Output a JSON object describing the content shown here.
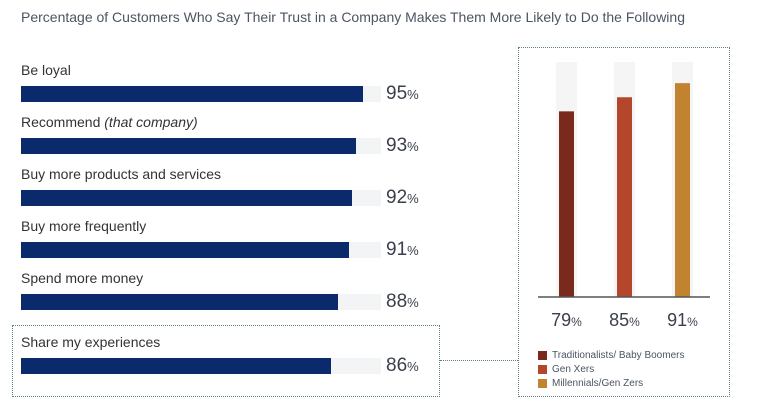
{
  "chart_data": [
    {
      "type": "bar",
      "orientation": "horizontal",
      "title": "Percentage of Customers Who Say Their Trust in a Company Makes Them More Likely to Do the Following",
      "categories": [
        {
          "label": "Be loyal",
          "label_note": ""
        },
        {
          "label": "Recommend ",
          "label_note": "(that company)"
        },
        {
          "label": "Buy more products and services",
          "label_note": ""
        },
        {
          "label": "Buy more frequently",
          "label_note": ""
        },
        {
          "label": "Spend more money",
          "label_note": ""
        },
        {
          "label": "Share my experiences",
          "label_note": ""
        }
      ],
      "values": [
        95,
        93,
        92,
        91,
        88,
        86
      ],
      "value_suffix": "%",
      "xlim": [
        0,
        100
      ],
      "highlighted_category": "Share my experiences",
      "bar_color": "#0b2a6b"
    },
    {
      "type": "bar",
      "orientation": "vertical",
      "subject": "Share my experiences",
      "categories": [
        "Traditionalists/Baby Boomers",
        "Gen Xers",
        "Millennials/Gen Zers"
      ],
      "values": [
        79,
        85,
        91
      ],
      "value_suffix": "%",
      "ylim": [
        0,
        100
      ],
      "legend": [
        {
          "label": "Traditionalists/ Baby Boomers",
          "color": "#7a2a1c"
        },
        {
          "label": "Gen Xers",
          "color": "#b4462b"
        },
        {
          "label": "Millennials/Gen Zers",
          "color": "#c1832f"
        }
      ]
    }
  ]
}
